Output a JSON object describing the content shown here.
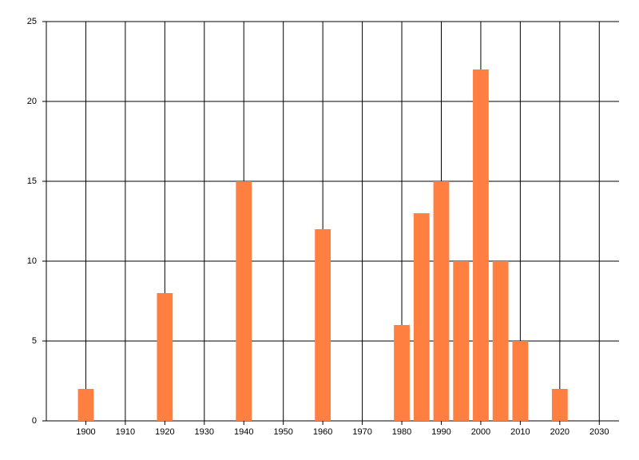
{
  "chart_data": {
    "type": "bar",
    "x": [
      1900,
      1920,
      1940,
      1960,
      1980,
      1985,
      1990,
      1995,
      2000,
      2005,
      2010,
      2020
    ],
    "values": [
      2,
      8,
      15,
      12,
      6,
      13,
      15,
      10,
      22,
      10,
      5,
      2
    ],
    "color": "#ff7f40",
    "xlim": [
      1890,
      2035
    ],
    "xticks": [
      1900,
      1910,
      1920,
      1930,
      1940,
      1950,
      1960,
      1970,
      1980,
      1990,
      2000,
      2010,
      2020,
      2030
    ],
    "ylim": [
      0,
      25
    ],
    "yticks": [
      0,
      5,
      10,
      15,
      20,
      25
    ],
    "grid": true
  }
}
